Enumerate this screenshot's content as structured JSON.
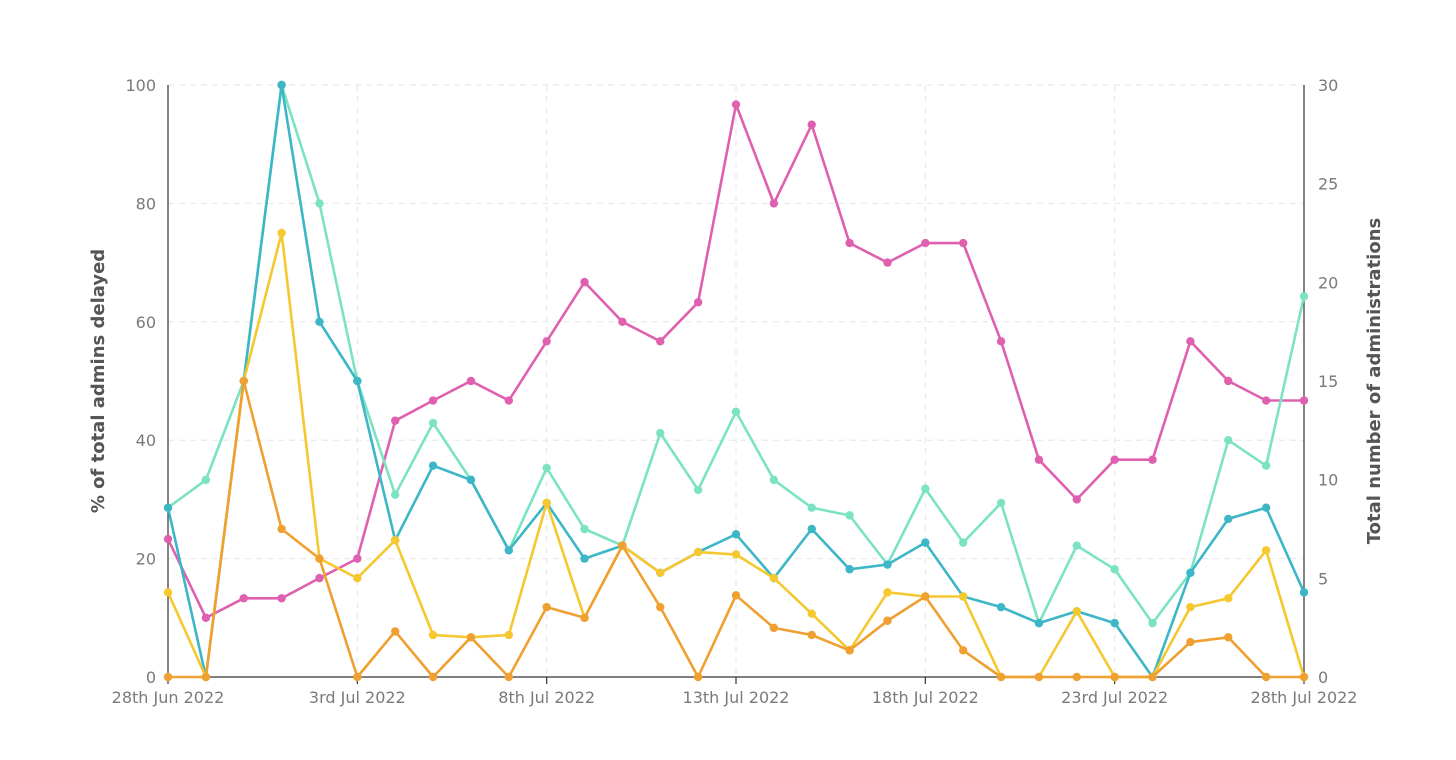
{
  "chart_data": {
    "type": "line",
    "title": "",
    "ylabel": "% of total admins delayed",
    "y2label": "Total number of administrations",
    "ylim": [
      0,
      100
    ],
    "y2lim": [
      0,
      30
    ],
    "yticks": [
      0,
      20,
      40,
      60,
      80,
      100
    ],
    "y2ticks": [
      0,
      5,
      10,
      15,
      20,
      25,
      30
    ],
    "xtick_labels": [
      {
        "index": 0,
        "label": "28th Jun 2022"
      },
      {
        "index": 5,
        "label": "3rd Jul 2022"
      },
      {
        "index": 10,
        "label": "8th Jul 2022"
      },
      {
        "index": 15,
        "label": "13th Jul 2022"
      },
      {
        "index": 20,
        "label": "18th Jul 2022"
      },
      {
        "index": 25,
        "label": "23rd Jul 2022"
      },
      {
        "index": 30,
        "label": "28th Jul 2022"
      }
    ],
    "x_count": 31,
    "series": [
      {
        "name": "pink",
        "axis": "left",
        "color": "#e060b0",
        "values": [
          23.3,
          10,
          13.3,
          13.3,
          16.7,
          20,
          43.3,
          46.7,
          50,
          46.7,
          56.7,
          66.7,
          60,
          56.7,
          63.3,
          96.7,
          80,
          93.3,
          73.3,
          70,
          73.3,
          73.3,
          56.7,
          36.7,
          30,
          36.7,
          36.7,
          56.7,
          50,
          46.7,
          46.7
        ]
      },
      {
        "name": "mint",
        "axis": "left",
        "color": "#7be3c4",
        "values": [
          28.6,
          33.3,
          50,
          100,
          80,
          50,
          30.8,
          42.9,
          33.3,
          21.4,
          35.3,
          25,
          22.2,
          41.2,
          31.6,
          44.8,
          33.3,
          28.6,
          27.3,
          19,
          31.8,
          22.7,
          29.4,
          9.1,
          22.2,
          18.2,
          9.1,
          17.6,
          40,
          35.7,
          64.3
        ]
      },
      {
        "name": "teal",
        "axis": "left",
        "color": "#3db6c6",
        "values": [
          28.6,
          0,
          50,
          100,
          60,
          50,
          23.1,
          35.7,
          33.3,
          21.4,
          29.4,
          20,
          22.2,
          17.6,
          21.1,
          24.1,
          16.7,
          25,
          18.2,
          19,
          22.7,
          13.6,
          11.8,
          9.1,
          11.1,
          9.1,
          0,
          17.6,
          26.7,
          28.6,
          14.3
        ]
      },
      {
        "name": "yellow",
        "axis": "left",
        "color": "#f5c830",
        "values": [
          14.3,
          0,
          50,
          75,
          20,
          16.7,
          23.1,
          7.1,
          6.7,
          7.1,
          29.4,
          10,
          22.2,
          17.6,
          21.1,
          20.7,
          16.7,
          10.7,
          4.5,
          14.3,
          13.6,
          13.6,
          0,
          0,
          11.1,
          0,
          0,
          11.8,
          13.3,
          21.4,
          0
        ]
      },
      {
        "name": "orange",
        "axis": "left",
        "color": "#f0a030",
        "values": [
          0,
          0,
          50,
          25,
          20,
          0,
          7.7,
          0,
          6.7,
          0,
          11.8,
          10,
          22.2,
          11.8,
          0,
          13.8,
          8.3,
          7.1,
          4.5,
          9.5,
          13.6,
          4.5,
          0,
          0,
          0,
          0,
          0,
          5.9,
          6.7,
          0,
          0
        ]
      }
    ]
  }
}
